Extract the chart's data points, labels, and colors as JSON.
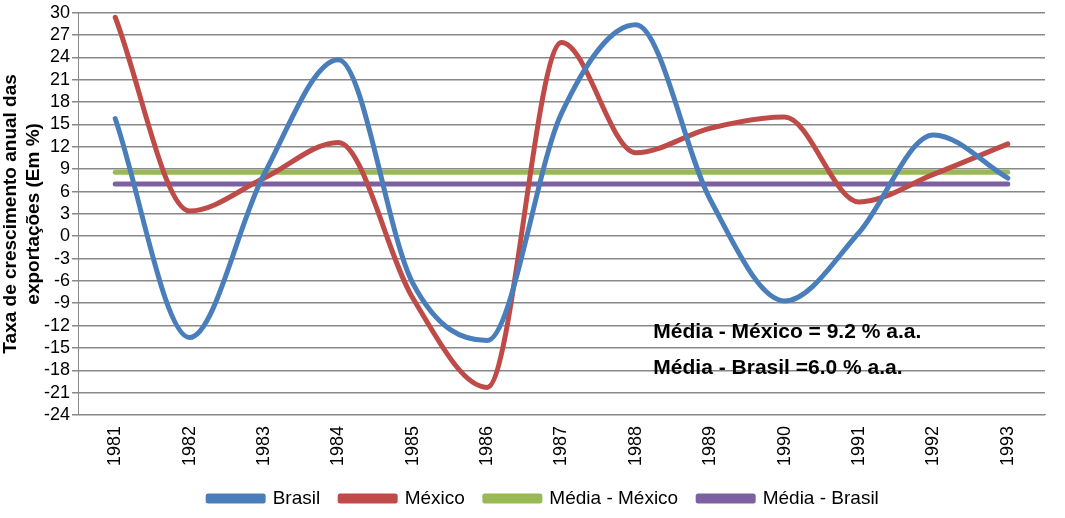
{
  "chart_data": {
    "type": "line",
    "ylabel": "Taxa de crescimento anual das exportações (Em %)",
    "categories": [
      "1981",
      "1982",
      "1983",
      "1984",
      "1985",
      "1986",
      "1987",
      "1988",
      "1989",
      "1990",
      "1991",
      "1992",
      "1993"
    ],
    "series": [
      {
        "name": "Brasil",
        "color": "#4a7ebb",
        "values": [
          15.8,
          -13.6,
          8.3,
          23.7,
          -6.3,
          -14.0,
          16.5,
          28.4,
          4.9,
          -8.7,
          0.5,
          13.6,
          7.8
        ]
      },
      {
        "name": "México",
        "color": "#be4b48",
        "values": [
          29.4,
          3.4,
          7.8,
          12.6,
          -8.3,
          -20.3,
          26.0,
          11.2,
          14.5,
          16.0,
          4.6,
          8.3,
          12.4
        ]
      },
      {
        "name": "Média - México",
        "color": "#98b954",
        "values": [
          8.6,
          8.6,
          8.6,
          8.6,
          8.6,
          8.6,
          8.6,
          8.6,
          8.6,
          8.6,
          8.6,
          8.6,
          8.6
        ]
      },
      {
        "name": "Média - Brasil",
        "color": "#7d60a0",
        "values": [
          7.0,
          7.0,
          7.0,
          7.0,
          7.0,
          7.0,
          7.0,
          7.0,
          7.0,
          7.0,
          7.0,
          7.0,
          7.0
        ]
      }
    ],
    "ylim": [
      -24,
      30
    ],
    "yticks": [
      -24,
      -21,
      -18,
      -15,
      -12,
      -9,
      -6,
      -3,
      0,
      3,
      6,
      9,
      12,
      15,
      18,
      21,
      24,
      27,
      30
    ],
    "grid": "y",
    "legend": "bottom",
    "marker": "none",
    "line_style": "solid",
    "annotations": [
      "Média - México = 9.2 % a.a.",
      "Média - Brasil =6.0 % a.a."
    ]
  }
}
